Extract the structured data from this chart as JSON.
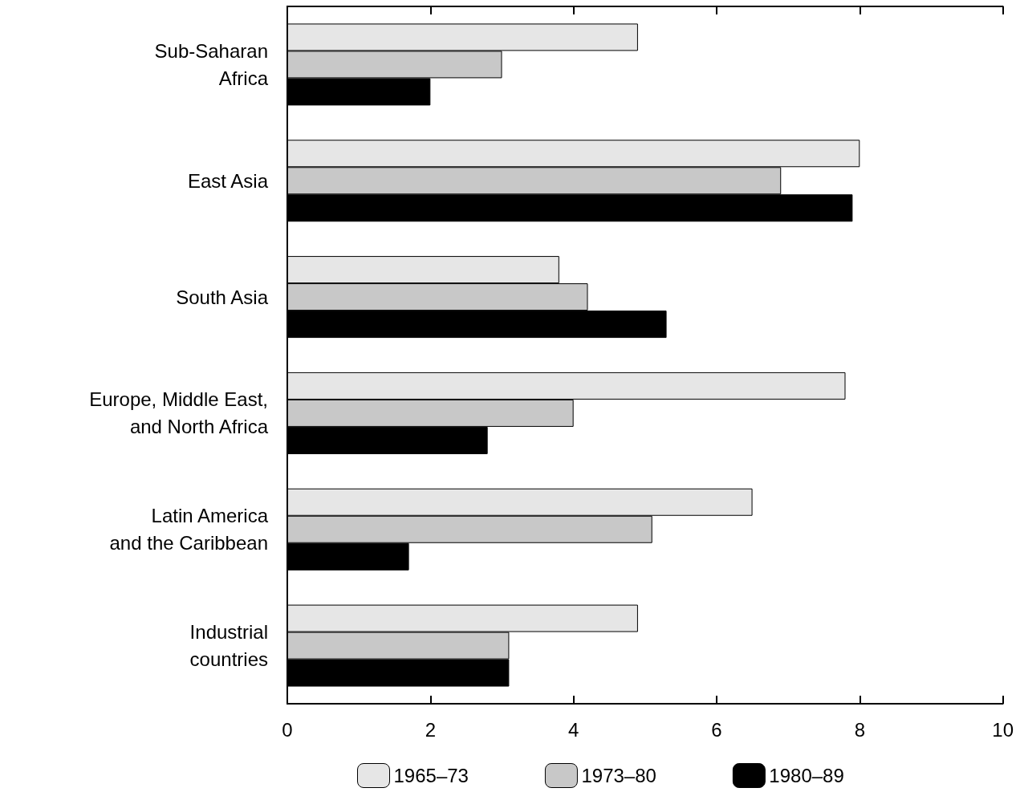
{
  "chart_data": {
    "type": "bar",
    "orientation": "horizontal",
    "categories": [
      "Sub-Saharan\nAfrica",
      "East Asia",
      "South Asia",
      "Europe, Middle East,\nand North Africa",
      "Latin America\nand the Caribbean",
      "Industrial\ncountries"
    ],
    "series": [
      {
        "name": "1965–73",
        "color": "#e6e6e6",
        "values": [
          4.9,
          8.0,
          3.8,
          7.8,
          6.5,
          4.9
        ]
      },
      {
        "name": "1973–80",
        "color": "#c8c8c8",
        "values": [
          3.0,
          6.9,
          4.2,
          4.0,
          5.1,
          3.1
        ]
      },
      {
        "name": "1980–89",
        "color": "#000000",
        "values": [
          2.0,
          7.9,
          5.3,
          2.8,
          1.7,
          3.1
        ]
      }
    ],
    "xlim": [
      0,
      10
    ],
    "xticks": [
      0,
      2,
      4,
      6,
      8,
      10
    ],
    "grid": false,
    "legend": "bottom"
  }
}
